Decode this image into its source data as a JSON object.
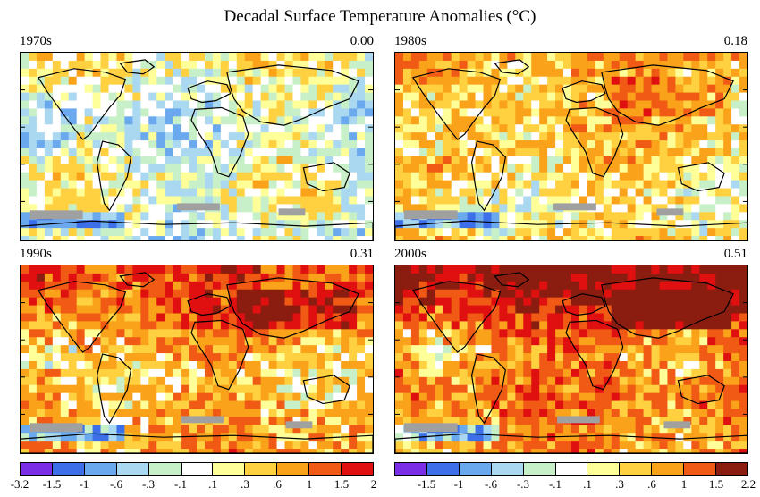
{
  "title": "Decadal Surface Temperature Anomalies (°C)",
  "panels": [
    {
      "decade": "1970s",
      "global_anomaly": "0.00",
      "warmth": 0
    },
    {
      "decade": "1980s",
      "global_anomaly": "0.18",
      "warmth": 1
    },
    {
      "decade": "1990s",
      "global_anomaly": "0.31",
      "warmth": 2
    },
    {
      "decade": "2000s",
      "global_anomaly": "0.51",
      "warmth": 3
    }
  ],
  "colorbar_colors": [
    "#7a2fe6",
    "#3c6fe8",
    "#6aa9ee",
    "#a9d8f0",
    "#c8f0c8",
    "#ffffff",
    "#ffff99",
    "#ffd040",
    "#f9a21a",
    "#f05a14",
    "#e01010",
    "#8a1c10"
  ],
  "colorbar_left_labels": [
    "-3.2",
    "-1.5",
    "-1",
    "-.6",
    "-.3",
    "-.1",
    ".1",
    ".3",
    ".6",
    "1",
    "1.5",
    "2"
  ],
  "colorbar_right_labels": [
    "-1.5",
    "-1",
    "-.6",
    "-.3",
    "-.1",
    ".1",
    ".3",
    ".6",
    "1",
    "1.5",
    "2.2"
  ],
  "missing_color": "#a0a0a0"
}
